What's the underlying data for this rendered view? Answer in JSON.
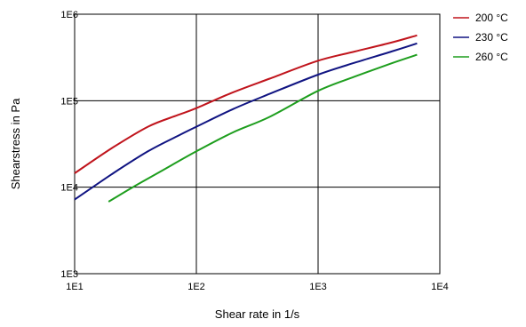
{
  "chart_data": {
    "type": "line",
    "title": "",
    "xlabel": "Shear rate in 1/s",
    "ylabel": "Shearstress in Pa",
    "x_scale": "log",
    "y_scale": "log",
    "xlim": [
      10,
      10000
    ],
    "ylim": [
      1000,
      1000000
    ],
    "x_ticks": [
      {
        "value": 10,
        "label": "1E1"
      },
      {
        "value": 100,
        "label": "1E2"
      },
      {
        "value": 1000,
        "label": "1E3"
      },
      {
        "value": 10000,
        "label": "1E4"
      }
    ],
    "y_ticks": [
      {
        "value": 1000,
        "label": "1E3"
      },
      {
        "value": 10000,
        "label": "1E4"
      },
      {
        "value": 100000,
        "label": "1E5"
      },
      {
        "value": 1000000,
        "label": "1E6"
      }
    ],
    "grid": true,
    "legend": "top-right",
    "series": [
      {
        "name": "200 °C",
        "color": "#c0141c",
        "points": [
          [
            10,
            14500
          ],
          [
            20,
            28000
          ],
          [
            40,
            50000
          ],
          [
            70,
            68000
          ],
          [
            100,
            82000
          ],
          [
            200,
            125000
          ],
          [
            400,
            180000
          ],
          [
            1000,
            290000
          ],
          [
            2000,
            370000
          ],
          [
            4000,
            470000
          ],
          [
            6500,
            570000
          ]
        ]
      },
      {
        "name": "230 °C",
        "color": "#101482",
        "points": [
          [
            10,
            7200
          ],
          [
            20,
            14000
          ],
          [
            40,
            26000
          ],
          [
            70,
            39000
          ],
          [
            100,
            50000
          ],
          [
            200,
            80000
          ],
          [
            400,
            120000
          ],
          [
            1000,
            200000
          ],
          [
            2000,
            275000
          ],
          [
            4000,
            370000
          ],
          [
            6500,
            460000
          ]
        ]
      },
      {
        "name": "260 °C",
        "color": "#1e9e1e",
        "points": [
          [
            19,
            6800
          ],
          [
            30,
            10000
          ],
          [
            50,
            15000
          ],
          [
            100,
            26000
          ],
          [
            200,
            43000
          ],
          [
            400,
            65000
          ],
          [
            1000,
            130000
          ],
          [
            2000,
            190000
          ],
          [
            4000,
            270000
          ],
          [
            6500,
            340000
          ]
        ]
      }
    ]
  }
}
